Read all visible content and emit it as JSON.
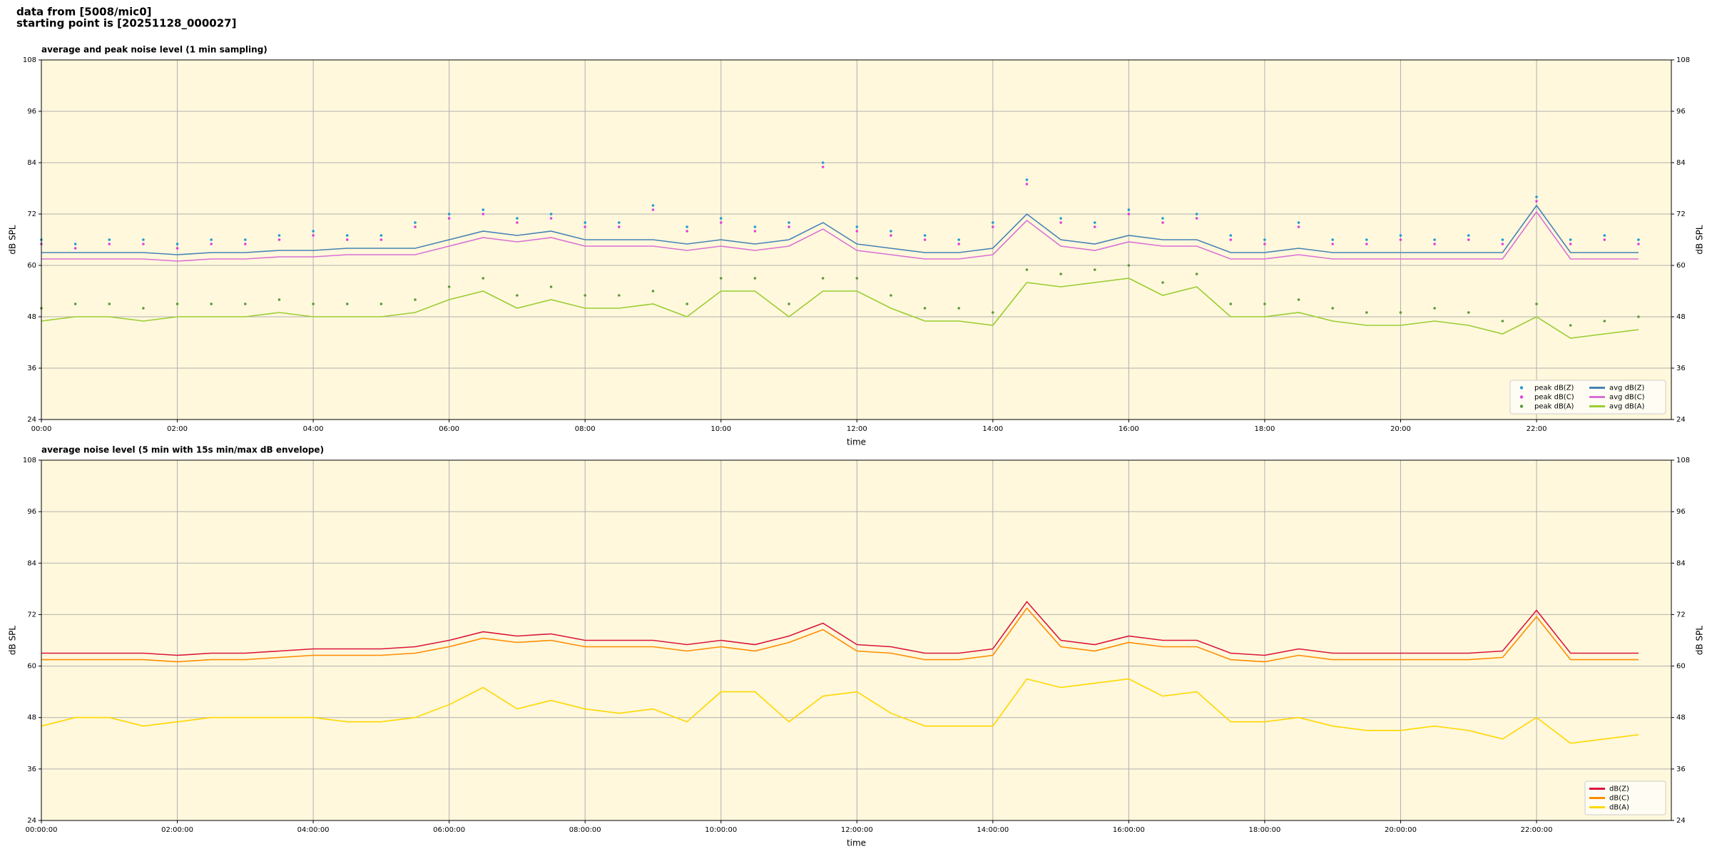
{
  "header": {
    "line1": "data from [5008/mic0]",
    "line2": "starting point is [20251128_000027]"
  },
  "chart_data": [
    {
      "type": "line",
      "title": "average and peak noise level (1 min sampling)",
      "xlabel": "time",
      "ylabel": "dB SPL",
      "x": [
        "00:00",
        "00:30",
        "01:00",
        "01:30",
        "02:00",
        "02:30",
        "03:00",
        "03:30",
        "04:00",
        "04:30",
        "05:00",
        "05:30",
        "06:00",
        "06:30",
        "07:00",
        "07:30",
        "08:00",
        "08:30",
        "09:00",
        "09:30",
        "10:00",
        "10:30",
        "11:00",
        "11:30",
        "12:00",
        "12:30",
        "13:00",
        "13:30",
        "14:00",
        "14:30",
        "15:00",
        "15:30",
        "16:00",
        "16:30",
        "17:00",
        "17:30",
        "18:00",
        "18:30",
        "19:00",
        "19:30",
        "20:00",
        "20:30",
        "21:00",
        "21:30",
        "22:00",
        "22:30",
        "23:00",
        "23:30"
      ],
      "xlim": [
        "00:00",
        "23:59"
      ],
      "xticks": [
        "00:00",
        "02:00",
        "04:00",
        "06:00",
        "08:00",
        "10:00",
        "12:00",
        "14:00",
        "16:00",
        "18:00",
        "20:00",
        "22:00"
      ],
      "ylim": [
        24,
        108
      ],
      "yticks": [
        24,
        36,
        48,
        60,
        72,
        84,
        96,
        108
      ],
      "grid": true,
      "legend": "lower right",
      "legend_columns": 2,
      "series": [
        {
          "name": "peak dB(Z)",
          "type": "scatter",
          "color": "#1f9bd6",
          "values": [
            66,
            65,
            66,
            66,
            65,
            66,
            66,
            67,
            68,
            67,
            67,
            70,
            72,
            73,
            71,
            72,
            70,
            70,
            74,
            69,
            71,
            69,
            70,
            84,
            69,
            68,
            67,
            66,
            70,
            80,
            71,
            70,
            73,
            71,
            72,
            67,
            66,
            70,
            66,
            66,
            67,
            66,
            67,
            66,
            76,
            66,
            67,
            66
          ]
        },
        {
          "name": "peak dB(C)",
          "type": "scatter",
          "color": "#e040e0",
          "values": [
            65,
            64,
            65,
            65,
            64,
            65,
            65,
            66,
            67,
            66,
            66,
            69,
            71,
            72,
            70,
            71,
            69,
            69,
            73,
            68,
            70,
            68,
            69,
            83,
            68,
            67,
            66,
            65,
            69,
            79,
            70,
            69,
            72,
            70,
            71,
            66,
            65,
            69,
            65,
            65,
            66,
            65,
            66,
            65,
            75,
            65,
            66,
            65
          ]
        },
        {
          "name": "peak dB(A)",
          "type": "scatter",
          "color": "#5a9a3a",
          "values": [
            50,
            51,
            51,
            50,
            51,
            51,
            51,
            52,
            51,
            51,
            51,
            52,
            55,
            57,
            53,
            55,
            53,
            53,
            54,
            51,
            57,
            57,
            51,
            57,
            57,
            53,
            50,
            50,
            49,
            59,
            58,
            59,
            60,
            56,
            58,
            51,
            51,
            52,
            50,
            49,
            49,
            50,
            49,
            47,
            51,
            46,
            47,
            48
          ]
        },
        {
          "name": "avg dB(Z)",
          "type": "line",
          "color": "#4682b4",
          "values": [
            63,
            63,
            63,
            63,
            62.5,
            63,
            63,
            63.5,
            63.5,
            64,
            64,
            64,
            66,
            68,
            67,
            68,
            66,
            66,
            66,
            65,
            66,
            65,
            66,
            70,
            65,
            64,
            63,
            63,
            64,
            72,
            66,
            65,
            67,
            66,
            66,
            63,
            63,
            64,
            63,
            63,
            63,
            63,
            63,
            63,
            74,
            63,
            63,
            63
          ]
        },
        {
          "name": "avg dB(C)",
          "type": "line",
          "color": "#da70d6",
          "values": [
            61.5,
            61.5,
            61.5,
            61.5,
            61,
            61.5,
            61.5,
            62,
            62,
            62.5,
            62.5,
            62.5,
            64.5,
            66.5,
            65.5,
            66.5,
            64.5,
            64.5,
            64.5,
            63.5,
            64.5,
            63.5,
            64.5,
            68.5,
            63.5,
            62.5,
            61.5,
            61.5,
            62.5,
            70.5,
            64.5,
            63.5,
            65.5,
            64.5,
            64.5,
            61.5,
            61.5,
            62.5,
            61.5,
            61.5,
            61.5,
            61.5,
            61.5,
            61.5,
            72.5,
            61.5,
            61.5,
            61.5
          ]
        },
        {
          "name": "avg dB(A)",
          "type": "line",
          "color": "#9acd32",
          "values": [
            47,
            48,
            48,
            47,
            48,
            48,
            48,
            49,
            48,
            48,
            48,
            49,
            52,
            54,
            50,
            52,
            50,
            50,
            51,
            48,
            54,
            54,
            48,
            54,
            54,
            50,
            47,
            47,
            46,
            56,
            55,
            56,
            57,
            53,
            55,
            48,
            48,
            49,
            47,
            46,
            46,
            47,
            46,
            44,
            48,
            43,
            44,
            45
          ]
        }
      ]
    },
    {
      "type": "line",
      "title": "average noise level (5 min with 15s min/max dB envelope)",
      "xlabel": "time",
      "ylabel": "dB SPL",
      "x": [
        "00:00:00",
        "00:30:00",
        "01:00:00",
        "01:30:00",
        "02:00:00",
        "02:30:00",
        "03:00:00",
        "03:30:00",
        "04:00:00",
        "04:30:00",
        "05:00:00",
        "05:30:00",
        "06:00:00",
        "06:30:00",
        "07:00:00",
        "07:30:00",
        "08:00:00",
        "08:30:00",
        "09:00:00",
        "09:30:00",
        "10:00:00",
        "10:30:00",
        "11:00:00",
        "11:30:00",
        "12:00:00",
        "12:30:00",
        "13:00:00",
        "13:30:00",
        "14:00:00",
        "14:30:00",
        "15:00:00",
        "15:30:00",
        "16:00:00",
        "16:30:00",
        "17:00:00",
        "17:30:00",
        "18:00:00",
        "18:30:00",
        "19:00:00",
        "19:30:00",
        "20:00:00",
        "20:30:00",
        "21:00:00",
        "21:30:00",
        "22:00:00",
        "22:30:00",
        "23:00:00",
        "23:30:00"
      ],
      "xlim": [
        "00:00:00",
        "23:59:00"
      ],
      "xticks": [
        "00:00:00",
        "02:00:00",
        "04:00:00",
        "06:00:00",
        "08:00:00",
        "10:00:00",
        "12:00:00",
        "14:00:00",
        "16:00:00",
        "18:00:00",
        "20:00:00",
        "22:00:00"
      ],
      "ylim": [
        24,
        108
      ],
      "yticks": [
        24,
        36,
        48,
        60,
        72,
        84,
        96,
        108
      ],
      "grid": true,
      "legend": "lower right",
      "legend_columns": 1,
      "series": [
        {
          "name": "dB(Z)",
          "type": "line",
          "color": "#dc143c",
          "values": [
            63,
            63,
            63,
            63,
            62.5,
            63,
            63,
            63.5,
            64,
            64,
            64,
            64.5,
            66,
            68,
            67,
            67.5,
            66,
            66,
            66,
            65,
            66,
            65,
            67,
            70,
            65,
            64.5,
            63,
            63,
            64,
            75,
            66,
            65,
            67,
            66,
            66,
            63,
            62.5,
            64,
            63,
            63,
            63,
            63,
            63,
            63.5,
            73,
            63,
            63,
            63
          ]
        },
        {
          "name": "dB(C)",
          "type": "line",
          "color": "#ff8c00",
          "values": [
            61.5,
            61.5,
            61.5,
            61.5,
            61,
            61.5,
            61.5,
            62,
            62.5,
            62.5,
            62.5,
            63,
            64.5,
            66.5,
            65.5,
            66,
            64.5,
            64.5,
            64.5,
            63.5,
            64.5,
            63.5,
            65.5,
            68.5,
            63.5,
            63,
            61.5,
            61.5,
            62.5,
            73.5,
            64.5,
            63.5,
            65.5,
            64.5,
            64.5,
            61.5,
            61,
            62.5,
            61.5,
            61.5,
            61.5,
            61.5,
            61.5,
            62,
            71.5,
            61.5,
            61.5,
            61.5
          ]
        },
        {
          "name": "dB(A)",
          "type": "line",
          "color": "#ffd700",
          "values": [
            46,
            48,
            48,
            46,
            47,
            48,
            48,
            48,
            48,
            47,
            47,
            48,
            51,
            55,
            50,
            52,
            50,
            49,
            50,
            47,
            54,
            54,
            47,
            53,
            54,
            49,
            46,
            46,
            46,
            57,
            55,
            56,
            57,
            53,
            54,
            47,
            47,
            48,
            46,
            45,
            45,
            46,
            45,
            43,
            48,
            42,
            43,
            44
          ]
        }
      ]
    }
  ]
}
